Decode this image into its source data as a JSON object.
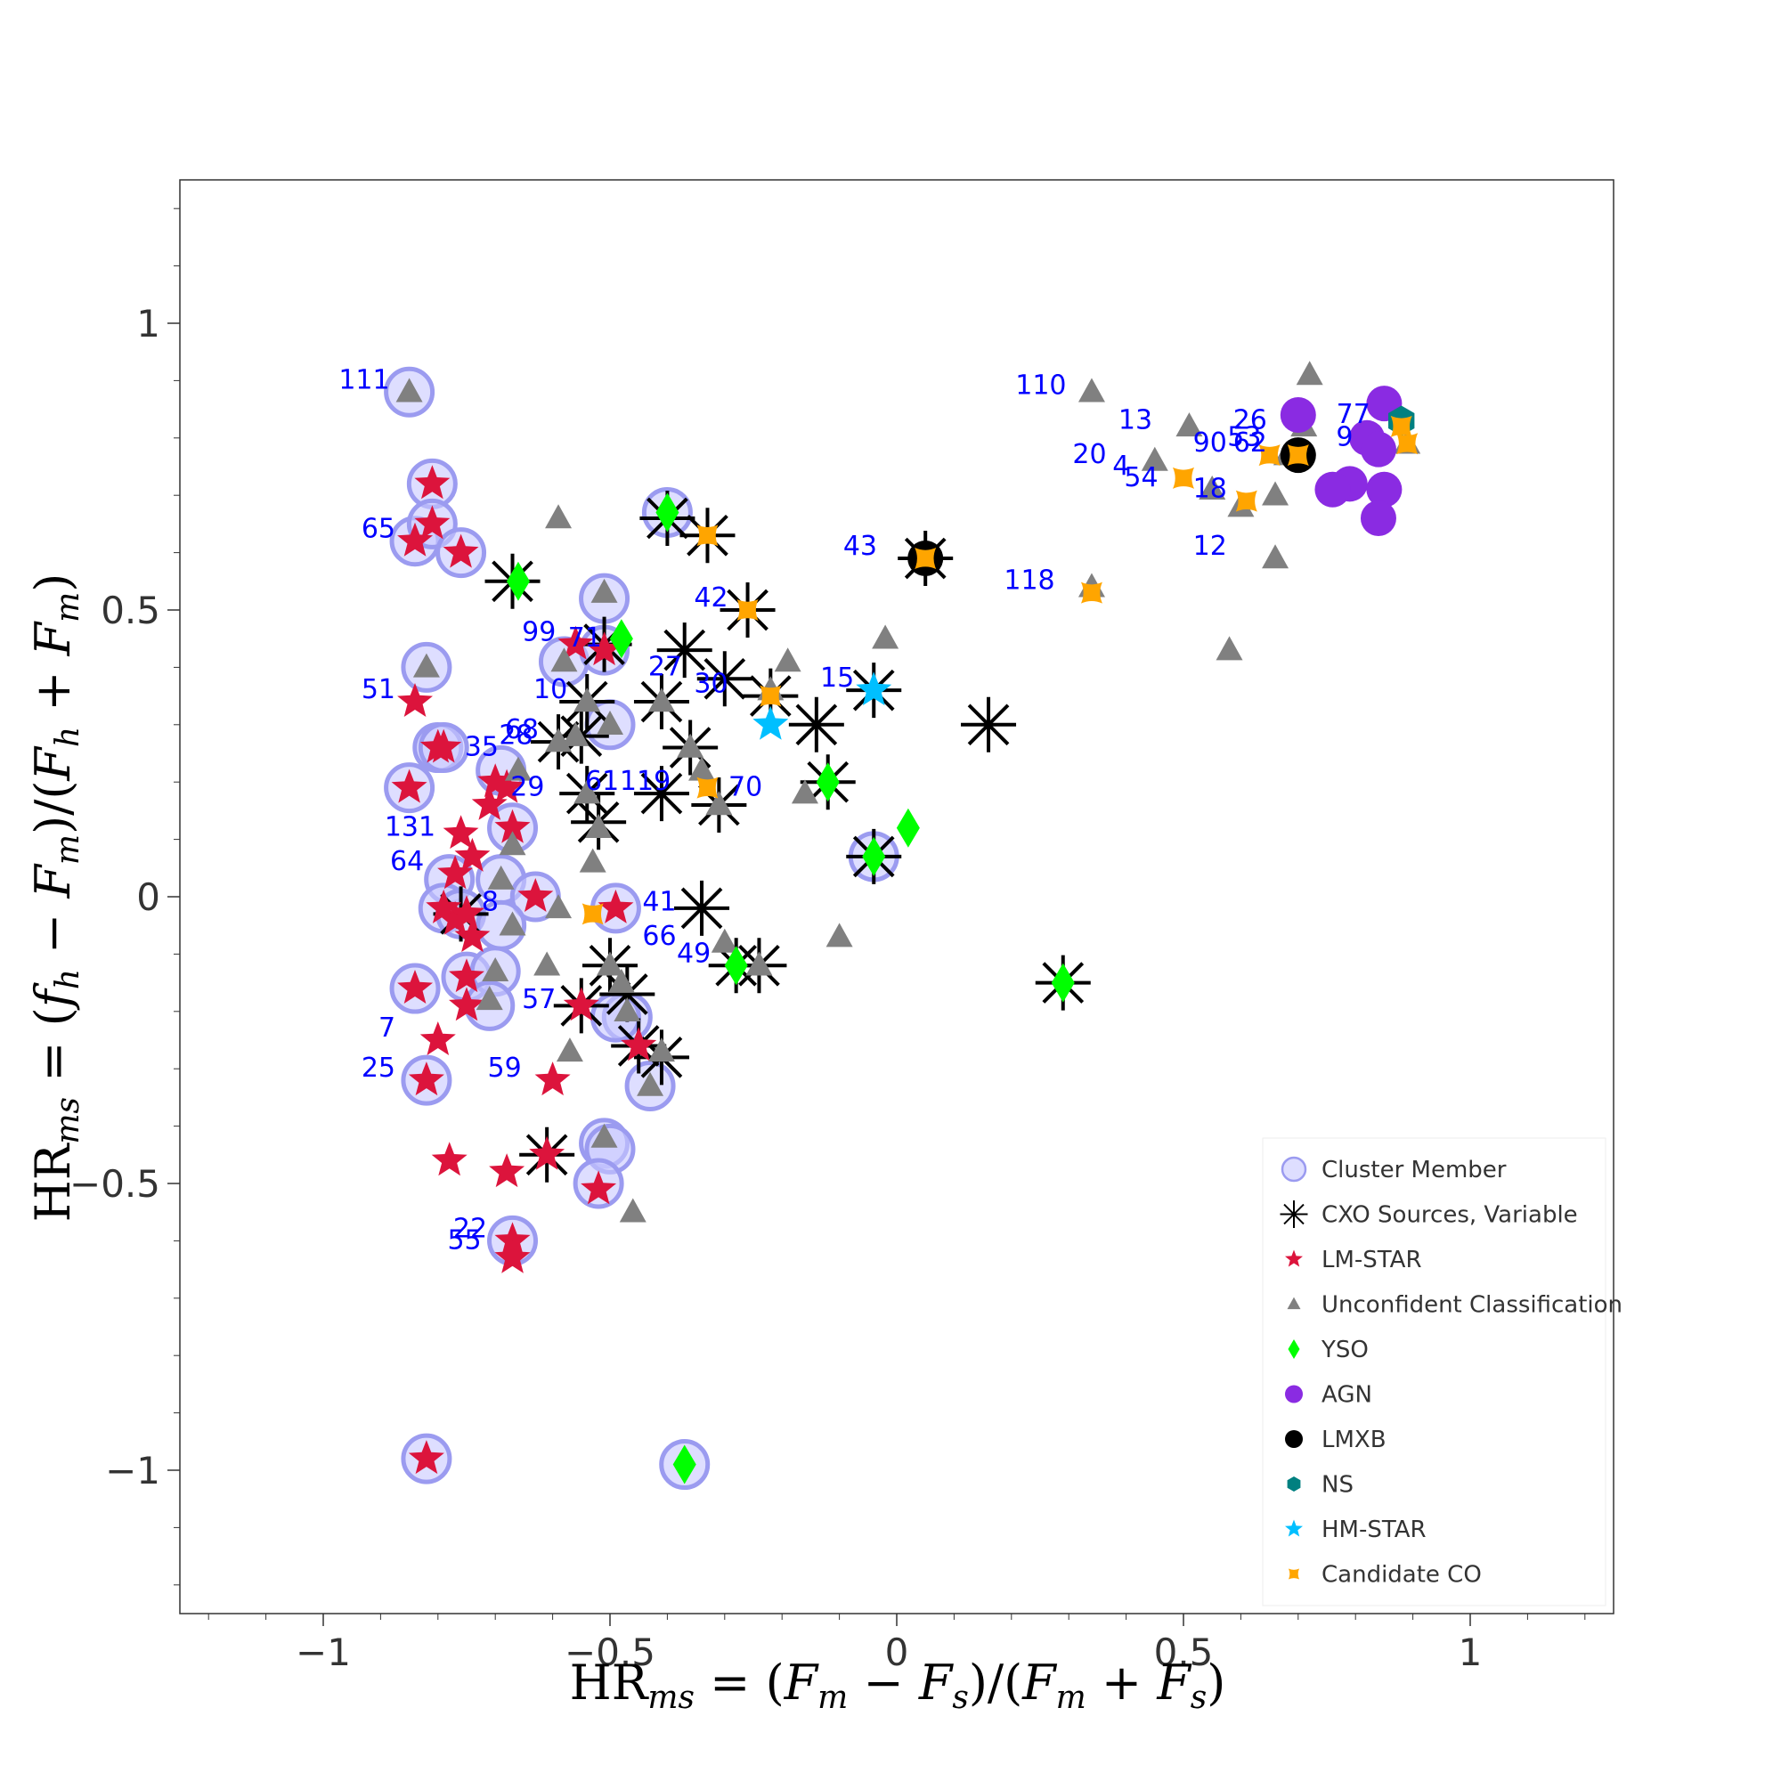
{
  "chart_data": {
    "type": "scatter",
    "x_title": {
      "main": "HR",
      "sub": "ms",
      "rest": " = (",
      "v1": "F",
      "s1": "m",
      "op": " − ",
      "v2": "F",
      "s2": "s",
      "mid": ")/(",
      "v3": "F",
      "s3": "m",
      "op2": " + ",
      "v4": "F",
      "s4": "s",
      "end": ")"
    },
    "y_title": {
      "main": "HR",
      "sub": "ms",
      "rest": " = (",
      "v1": "f",
      "s1": "h",
      "op": " − ",
      "v2": "F",
      "s2": "m",
      "mid": ")/(",
      "v3": "F",
      "s3": "h",
      "op2": " + ",
      "v4": "F",
      "s4": "m",
      "end": ")"
    },
    "xlim": [
      -1.25,
      1.25
    ],
    "ylim": [
      -1.25,
      1.25
    ],
    "xticks": [
      {
        "v": -1,
        "label": "−1"
      },
      {
        "v": -0.5,
        "label": "−0.5"
      },
      {
        "v": 0,
        "label": "0"
      },
      {
        "v": 0.5,
        "label": "0.5"
      },
      {
        "v": 1,
        "label": "1"
      }
    ],
    "yticks": [
      {
        "v": 1,
        "label": "1"
      },
      {
        "v": 0.5,
        "label": "0.5"
      },
      {
        "v": 0,
        "label": "0"
      },
      {
        "v": -0.5,
        "label": "−0.5"
      },
      {
        "v": -1,
        "label": "−1"
      }
    ],
    "grid": false,
    "legend_position": "bottom-right",
    "legend": [
      {
        "label": "Cluster Member",
        "marker": "member"
      },
      {
        "label": "CXO Sources, Variable",
        "marker": "variable"
      },
      {
        "label": "LM-STAR",
        "marker": "star",
        "color": "#dc143c"
      },
      {
        "label": "Unconfident Classification",
        "marker": "triangle",
        "color": "#808080"
      },
      {
        "label": "YSO",
        "marker": "diamond",
        "color": "#00ff00"
      },
      {
        "label": "AGN",
        "marker": "circle",
        "color": "#8a2be2"
      },
      {
        "label": "LMXB",
        "marker": "circle",
        "color": "#000000"
      },
      {
        "label": "NS",
        "marker": "hexagon",
        "color": "#008080"
      },
      {
        "label": "HM-STAR",
        "marker": "star",
        "color": "#00bfff"
      },
      {
        "label": "Candidate CO",
        "marker": "candidate",
        "color": "#ffa500"
      }
    ],
    "members": [
      [
        -0.85,
        0.88
      ],
      [
        -0.81,
        0.72
      ],
      [
        -0.84,
        0.62
      ],
      [
        -0.81,
        0.65
      ],
      [
        -0.76,
        0.6
      ],
      [
        -0.51,
        0.52
      ],
      [
        -0.82,
        0.4
      ],
      [
        -0.58,
        0.41
      ],
      [
        -0.51,
        0.43
      ],
      [
        -0.8,
        0.26
      ],
      [
        -0.79,
        0.26
      ],
      [
        -0.5,
        0.3
      ],
      [
        -0.85,
        0.19
      ],
      [
        -0.69,
        0.22
      ],
      [
        -0.67,
        0.12
      ],
      [
        -0.78,
        0.03
      ],
      [
        -0.69,
        0.03
      ],
      [
        -0.63,
        0.0
      ],
      [
        -0.79,
        -0.02
      ],
      [
        -0.76,
        -0.03
      ],
      [
        -0.69,
        -0.05
      ],
      [
        -0.49,
        -0.02
      ],
      [
        -0.75,
        -0.14
      ],
      [
        -0.7,
        -0.13
      ],
      [
        -0.71,
        -0.19
      ],
      [
        -0.84,
        -0.16
      ],
      [
        -0.47,
        -0.21
      ],
      [
        -0.49,
        -0.21
      ],
      [
        -0.82,
        -0.32
      ],
      [
        -0.43,
        -0.33
      ],
      [
        -0.51,
        -0.43
      ],
      [
        -0.5,
        -0.44
      ],
      [
        -0.52,
        -0.5
      ],
      [
        -0.67,
        -0.6
      ],
      [
        -0.82,
        -0.98
      ],
      [
        -0.37,
        -0.99
      ],
      [
        -0.04,
        0.07
      ],
      [
        -0.4,
        0.67
      ]
    ],
    "variable": [
      [
        -0.4,
        0.66
      ],
      [
        -0.33,
        0.63
      ],
      [
        -0.67,
        0.55
      ],
      [
        -0.26,
        0.5
      ],
      [
        -0.51,
        0.44
      ],
      [
        -0.37,
        0.43
      ],
      [
        -0.3,
        0.38
      ],
      [
        -0.54,
        0.34
      ],
      [
        -0.41,
        0.34
      ],
      [
        -0.22,
        0.35
      ],
      [
        -0.04,
        0.36
      ],
      [
        -0.14,
        0.3
      ],
      [
        0.16,
        0.3
      ],
      [
        -0.59,
        0.27
      ],
      [
        -0.55,
        0.28
      ],
      [
        -0.36,
        0.26
      ],
      [
        -0.54,
        0.18
      ],
      [
        -0.41,
        0.18
      ],
      [
        -0.31,
        0.16
      ],
      [
        -0.52,
        0.13
      ],
      [
        -0.12,
        0.2
      ],
      [
        -0.04,
        0.07
      ],
      [
        -0.34,
        -0.02
      ],
      [
        -0.76,
        -0.03
      ],
      [
        -0.5,
        -0.12
      ],
      [
        -0.24,
        -0.12
      ],
      [
        -0.28,
        -0.12
      ],
      [
        -0.47,
        -0.17
      ],
      [
        -0.55,
        -0.19
      ],
      [
        -0.45,
        -0.26
      ],
      [
        -0.41,
        -0.28
      ],
      [
        -0.61,
        -0.45
      ],
      [
        0.29,
        -0.15
      ],
      [
        0.05,
        0.59
      ]
    ],
    "lmstar": [
      [
        -0.81,
        0.72
      ],
      [
        -0.84,
        0.62
      ],
      [
        -0.81,
        0.65
      ],
      [
        -0.76,
        0.6
      ],
      [
        -0.84,
        0.34
      ],
      [
        -0.8,
        0.26
      ],
      [
        -0.79,
        0.26
      ],
      [
        -0.85,
        0.19
      ],
      [
        -0.7,
        0.2
      ],
      [
        -0.68,
        0.19
      ],
      [
        -0.71,
        0.16
      ],
      [
        -0.67,
        0.12
      ],
      [
        -0.76,
        0.11
      ],
      [
        -0.74,
        0.07
      ],
      [
        -0.77,
        0.04
      ],
      [
        -0.63,
        0.0
      ],
      [
        -0.79,
        -0.02
      ],
      [
        -0.77,
        -0.04
      ],
      [
        -0.75,
        -0.03
      ],
      [
        -0.74,
        -0.07
      ],
      [
        -0.49,
        -0.02
      ],
      [
        -0.75,
        -0.14
      ],
      [
        -0.75,
        -0.19
      ],
      [
        -0.84,
        -0.16
      ],
      [
        -0.8,
        -0.25
      ],
      [
        -0.82,
        -0.32
      ],
      [
        -0.6,
        -0.32
      ],
      [
        -0.55,
        -0.19
      ],
      [
        -0.45,
        -0.26
      ],
      [
        -0.78,
        -0.46
      ],
      [
        -0.68,
        -0.48
      ],
      [
        -0.61,
        -0.45
      ],
      [
        -0.52,
        -0.51
      ],
      [
        -0.67,
        -0.6
      ],
      [
        -0.67,
        -0.63
      ],
      [
        -0.82,
        -0.98
      ],
      [
        -0.51,
        0.43
      ],
      [
        -0.56,
        0.44
      ]
    ],
    "unconfident": [
      [
        -0.85,
        0.88
      ],
      [
        -0.59,
        0.66
      ],
      [
        -0.51,
        0.53
      ],
      [
        -0.82,
        0.4
      ],
      [
        -0.58,
        0.41
      ],
      [
        -0.19,
        0.41
      ],
      [
        -0.02,
        0.45
      ],
      [
        -0.54,
        0.34
      ],
      [
        -0.41,
        0.34
      ],
      [
        -0.5,
        0.3
      ],
      [
        -0.59,
        0.27
      ],
      [
        -0.56,
        0.28
      ],
      [
        -0.36,
        0.26
      ],
      [
        -0.34,
        0.22
      ],
      [
        -0.54,
        0.18
      ],
      [
        -0.66,
        0.22
      ],
      [
        -0.16,
        0.18
      ],
      [
        -0.67,
        0.09
      ],
      [
        -0.53,
        0.06
      ],
      [
        -0.69,
        0.03
      ],
      [
        -0.67,
        -0.05
      ],
      [
        -0.59,
        -0.02
      ],
      [
        -0.1,
        -0.07
      ],
      [
        -0.3,
        -0.08
      ],
      [
        -0.61,
        -0.12
      ],
      [
        -0.7,
        -0.13
      ],
      [
        -0.71,
        -0.18
      ],
      [
        -0.48,
        -0.15
      ],
      [
        -0.47,
        -0.2
      ],
      [
        -0.57,
        -0.27
      ],
      [
        -0.41,
        -0.27
      ],
      [
        -0.43,
        -0.33
      ],
      [
        -0.51,
        -0.42
      ],
      [
        -0.46,
        -0.55
      ],
      [
        -0.5,
        -0.12
      ],
      [
        -0.31,
        0.16
      ],
      [
        -0.52,
        0.12
      ],
      [
        -0.24,
        -0.12
      ],
      [
        0.34,
        0.88
      ],
      [
        0.51,
        0.82
      ],
      [
        0.45,
        0.76
      ],
      [
        0.55,
        0.71
      ],
      [
        0.72,
        0.91
      ],
      [
        0.71,
        0.82
      ],
      [
        0.68,
        0.77
      ],
      [
        0.66,
        0.7
      ],
      [
        0.6,
        0.68
      ],
      [
        0.66,
        0.59
      ],
      [
        0.58,
        0.43
      ],
      [
        0.34,
        0.54
      ],
      [
        0.89,
        0.79
      ],
      [
        -0.22,
        0.36
      ]
    ],
    "yso": [
      [
        -0.4,
        0.67
      ],
      [
        -0.66,
        0.55
      ],
      [
        -0.48,
        0.45
      ],
      [
        -0.12,
        0.2
      ],
      [
        0.02,
        0.12
      ],
      [
        -0.04,
        0.07
      ],
      [
        -0.28,
        -0.12
      ],
      [
        0.29,
        -0.15
      ],
      [
        -0.37,
        -0.99
      ]
    ],
    "agn": [
      [
        0.7,
        0.84
      ],
      [
        0.85,
        0.86
      ],
      [
        0.82,
        0.8
      ],
      [
        0.84,
        0.78
      ],
      [
        0.79,
        0.72
      ],
      [
        0.76,
        0.71
      ],
      [
        0.85,
        0.71
      ],
      [
        0.84,
        0.66
      ]
    ],
    "lmxb": [
      [
        0.05,
        0.59
      ],
      [
        0.7,
        0.77
      ]
    ],
    "ns": [
      [
        0.88,
        0.83
      ]
    ],
    "hmstar": [
      [
        -0.04,
        0.36
      ],
      [
        -0.22,
        0.3
      ]
    ],
    "candidate": [
      [
        -0.33,
        0.63
      ],
      [
        -0.26,
        0.5
      ],
      [
        -0.22,
        0.35
      ],
      [
        -0.33,
        0.19
      ],
      [
        -0.53,
        -0.03
      ],
      [
        0.05,
        0.59
      ],
      [
        0.5,
        0.73
      ],
      [
        0.34,
        0.53
      ],
      [
        0.61,
        0.69
      ],
      [
        0.65,
        0.77
      ],
      [
        0.7,
        0.77
      ],
      [
        0.88,
        0.82
      ],
      [
        0.89,
        0.79
      ]
    ],
    "annotations": [
      {
        "label": "111",
        "x": -0.85,
        "y": 0.88
      },
      {
        "label": "65",
        "x": -0.84,
        "y": 0.62
      },
      {
        "label": "51",
        "x": -0.84,
        "y": 0.34
      },
      {
        "label": "99",
        "x": -0.56,
        "y": 0.44
      },
      {
        "label": "71",
        "x": -0.48,
        "y": 0.43
      },
      {
        "label": "10",
        "x": -0.54,
        "y": 0.34
      },
      {
        "label": "27",
        "x": -0.34,
        "y": 0.38
      },
      {
        "label": "30",
        "x": -0.26,
        "y": 0.35
      },
      {
        "label": "42",
        "x": -0.26,
        "y": 0.5
      },
      {
        "label": "15",
        "x": -0.04,
        "y": 0.36
      },
      {
        "label": "68",
        "x": -0.59,
        "y": 0.27
      },
      {
        "label": "35",
        "x": -0.66,
        "y": 0.24
      },
      {
        "label": "28",
        "x": -0.6,
        "y": 0.26
      },
      {
        "label": "29",
        "x": -0.58,
        "y": 0.17
      },
      {
        "label": "61",
        "x": -0.45,
        "y": 0.18
      },
      {
        "label": "119",
        "x": -0.36,
        "y": 0.18
      },
      {
        "label": "70",
        "x": -0.2,
        "y": 0.17
      },
      {
        "label": "131",
        "x": -0.77,
        "y": 0.1
      },
      {
        "label": "64",
        "x": -0.79,
        "y": 0.04
      },
      {
        "label": "8",
        "x": -0.66,
        "y": -0.03
      },
      {
        "label": "41",
        "x": -0.35,
        "y": -0.03
      },
      {
        "label": "66",
        "x": -0.35,
        "y": -0.09
      },
      {
        "label": "49",
        "x": -0.29,
        "y": -0.12
      },
      {
        "label": "57",
        "x": -0.56,
        "y": -0.2
      },
      {
        "label": "7",
        "x": -0.84,
        "y": -0.25
      },
      {
        "label": "25",
        "x": -0.84,
        "y": -0.32
      },
      {
        "label": "59",
        "x": -0.62,
        "y": -0.32
      },
      {
        "label": "22",
        "x": -0.68,
        "y": -0.6
      },
      {
        "label": "55",
        "x": -0.69,
        "y": -0.62
      },
      {
        "label": "110",
        "x": 0.33,
        "y": 0.87
      },
      {
        "label": "13",
        "x": 0.48,
        "y": 0.81
      },
      {
        "label": "26",
        "x": 0.68,
        "y": 0.81
      },
      {
        "label": "77",
        "x": 0.86,
        "y": 0.82
      },
      {
        "label": "20",
        "x": 0.4,
        "y": 0.75
      },
      {
        "label": "4",
        "x": 0.44,
        "y": 0.73
      },
      {
        "label": "54",
        "x": 0.49,
        "y": 0.71
      },
      {
        "label": "90",
        "x": 0.61,
        "y": 0.77
      },
      {
        "label": "53",
        "x": 0.67,
        "y": 0.78
      },
      {
        "label": "62",
        "x": 0.68,
        "y": 0.77
      },
      {
        "label": "9",
        "x": 0.83,
        "y": 0.78
      },
      {
        "label": "18",
        "x": 0.61,
        "y": 0.69
      },
      {
        "label": "43",
        "x": 0.0,
        "y": 0.59
      },
      {
        "label": "12",
        "x": 0.61,
        "y": 0.59
      },
      {
        "label": "118",
        "x": 0.31,
        "y": 0.53
      }
    ]
  }
}
